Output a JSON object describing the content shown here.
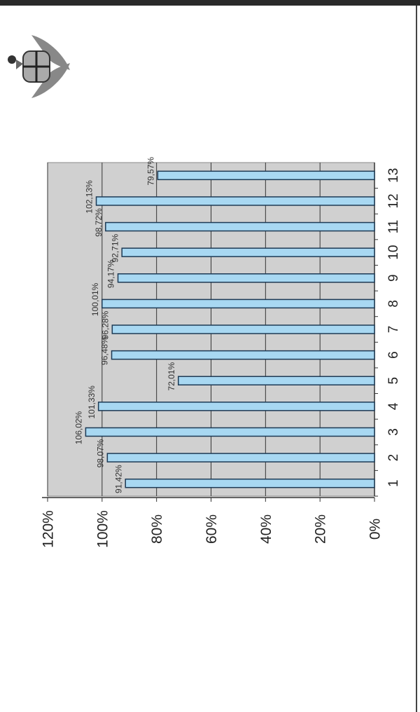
{
  "chart_data": {
    "type": "bar",
    "orientation": "rotated",
    "categories": [
      "1",
      "2",
      "3",
      "4",
      "5",
      "6",
      "7",
      "8",
      "9",
      "10",
      "11",
      "12",
      "13"
    ],
    "values": [
      91.42,
      98.07,
      106.02,
      101.33,
      72.01,
      96.48,
      96.28,
      100.01,
      94.17,
      92.71,
      98.72,
      102.13,
      79.57
    ],
    "value_labels": [
      "91,42%",
      "98,07%",
      "106,02%",
      "101,33%",
      "72,01%",
      "96,48%",
      "96,28%",
      "100,01%",
      "94,17%",
      "92,71%",
      "98,72%",
      "102,13%",
      "79,57%"
    ],
    "color": "#a8d8f2",
    "ylim": [
      0,
      120
    ],
    "yticks": [
      {
        "value": 0,
        "label": "0%"
      },
      {
        "value": 20,
        "label": "20%"
      },
      {
        "value": 40,
        "label": "40%"
      },
      {
        "value": 60,
        "label": "60%"
      },
      {
        "value": 80,
        "label": "80%"
      },
      {
        "value": 100,
        "label": "100%"
      },
      {
        "value": 120,
        "label": "120%"
      }
    ],
    "grid": true
  }
}
